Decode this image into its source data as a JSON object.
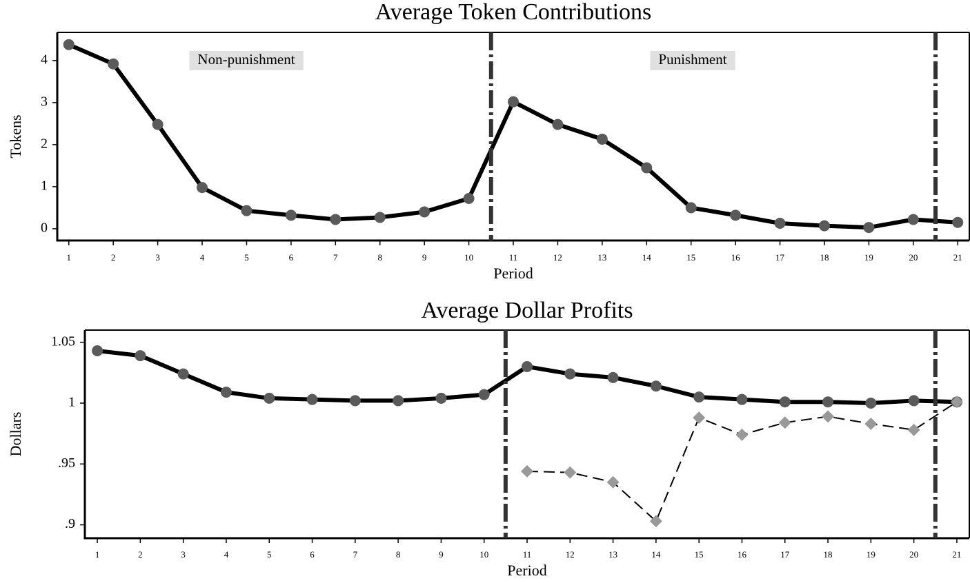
{
  "chart_data": [
    {
      "type": "line",
      "title": "Average Token Contributions",
      "x_label": "Period",
      "y_label": "Tokens",
      "x": [
        1,
        2,
        3,
        4,
        5,
        6,
        7,
        8,
        9,
        10,
        11,
        12,
        13,
        14,
        15,
        16,
        17,
        18,
        19,
        20,
        21
      ],
      "series": [
        {
          "color": "#000000",
          "marker_color": "#5a5a5a",
          "marker": "circle",
          "dash": false,
          "values": [
            4.38,
            3.92,
            2.48,
            0.98,
            0.43,
            0.32,
            0.22,
            0.27,
            0.4,
            0.72,
            3.02,
            2.48,
            2.13,
            1.45,
            0.5,
            0.32,
            0.13,
            0.07,
            0.03,
            0.22,
            0.15
          ]
        }
      ],
      "xlim": [
        0.74,
        21.26
      ],
      "xticks": [
        1,
        2,
        3,
        4,
        5,
        6,
        7,
        8,
        9,
        10,
        11,
        12,
        13,
        14,
        15,
        16,
        17,
        18,
        19,
        20,
        21
      ],
      "ylim": [
        -0.28,
        4.67
      ],
      "yticks": [
        0,
        1,
        2,
        3,
        4
      ],
      "vlines": [
        10.5,
        20.5
      ],
      "annotations": [
        "Non-punishment",
        "Punishment"
      ]
    },
    {
      "type": "line",
      "title": "Average Dollar Profits",
      "x_label": "Period",
      "y_label": "Dollars",
      "x": [
        1,
        2,
        3,
        4,
        5,
        6,
        7,
        8,
        9,
        10,
        11,
        12,
        13,
        14,
        15,
        16,
        17,
        18,
        19,
        20,
        21
      ],
      "series": [
        {
          "color": "#000000",
          "marker_color": "#5a5a5a",
          "marker": "circle",
          "dash": false,
          "values": [
            1.043,
            1.039,
            1.024,
            1.009,
            1.004,
            1.003,
            1.002,
            1.002,
            1.004,
            1.007,
            1.03,
            1.024,
            1.021,
            1.014,
            1.005,
            1.003,
            1.001,
            1.001,
            1.0,
            1.002,
            1.001
          ]
        },
        {
          "color": "#000000",
          "marker_color": "#999999",
          "marker": "diamond",
          "dash": true,
          "values": [
            null,
            null,
            null,
            null,
            null,
            null,
            null,
            null,
            null,
            null,
            0.944,
            0.943,
            0.935,
            0.903,
            0.988,
            0.974,
            0.984,
            0.989,
            0.983,
            0.978,
            1.001
          ]
        }
      ],
      "xlim": [
        0.71,
        21.29
      ],
      "xticks": [
        1,
        2,
        3,
        4,
        5,
        6,
        7,
        8,
        9,
        10,
        11,
        12,
        13,
        14,
        15,
        16,
        17,
        18,
        19,
        20,
        21
      ],
      "ylim": [
        0.889,
        1.06
      ],
      "yticks": [
        {
          "value": 0.9,
          "label": ".9"
        },
        {
          "value": 0.95,
          "label": ".95"
        },
        1,
        1.05
      ],
      "vlines": [
        10.5,
        20.5
      ]
    }
  ]
}
